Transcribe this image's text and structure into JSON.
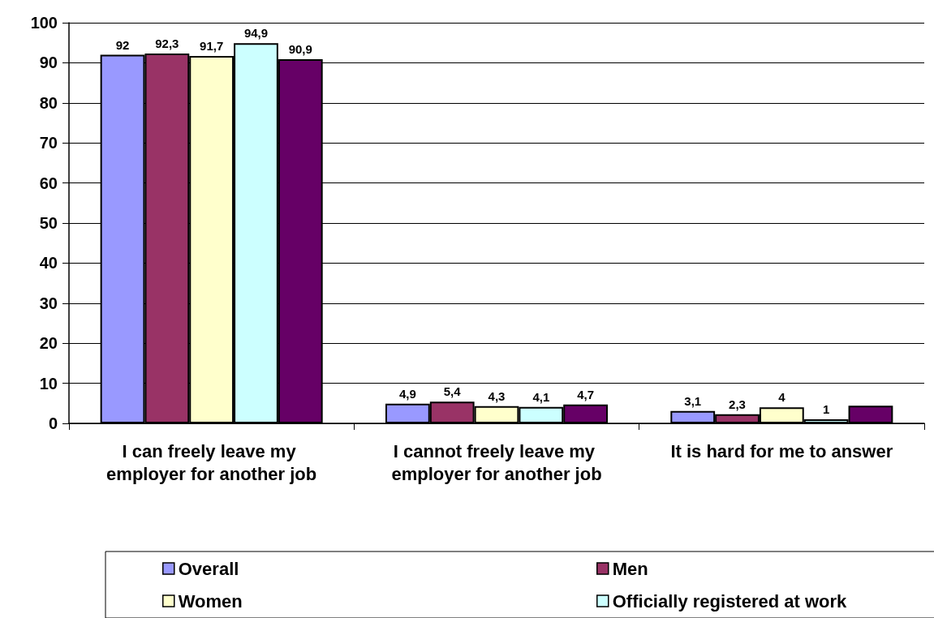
{
  "chart_data": {
    "type": "bar",
    "categories": [
      "I can freely leave my employer for another job",
      "I cannot freely leave my employer for another job",
      "It is hard for me to answer"
    ],
    "series": [
      {
        "name": "Overall",
        "color": "#9999ff",
        "values": [
          92,
          4.9,
          3.1
        ],
        "value_labels": [
          "92",
          "4,9",
          "3,1"
        ]
      },
      {
        "name": "Men",
        "color": "#993366",
        "values": [
          92.3,
          5.4,
          2.3
        ],
        "value_labels": [
          "92,3",
          "5,4",
          "2,3"
        ]
      },
      {
        "name": "Women",
        "color": "#ffffcc",
        "values": [
          91.7,
          4.3,
          4
        ],
        "value_labels": [
          "91,7",
          "4,3",
          "4"
        ]
      },
      {
        "name": "Officially registered at work",
        "color": "#ccffff",
        "values": [
          94.9,
          4.1,
          1
        ],
        "value_labels": [
          "94,9",
          "4,1",
          "1"
        ]
      },
      {
        "color": "#660066",
        "values": [
          90.9,
          4.7,
          4.4
        ],
        "value_labels": [
          "90,9",
          "4,7",
          null
        ]
      }
    ],
    "ylim": [
      0,
      100
    ],
    "yticks": [
      0,
      10,
      20,
      30,
      40,
      50,
      60,
      70,
      80,
      90,
      100
    ],
    "grid": "y",
    "legend": "bottom"
  }
}
